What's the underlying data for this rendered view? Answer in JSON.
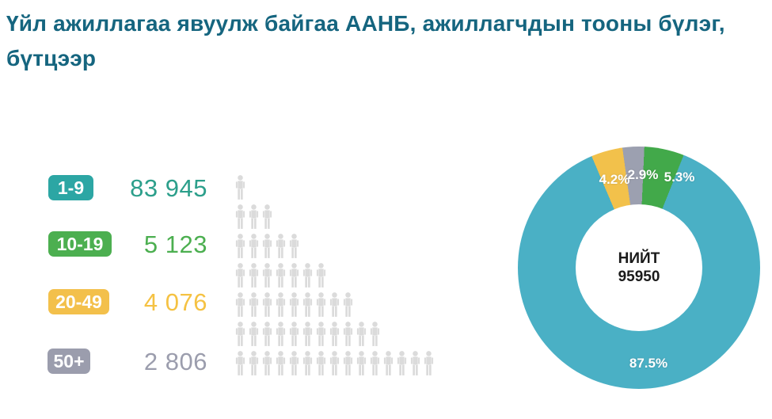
{
  "title": "Үйл ажиллагаа явуулж байгаа ААНБ, ажиллагчдын тооны бүлэг, бүтцээр",
  "colors": {
    "title": "#15657F",
    "badge_1_9": "#2CA6A4",
    "value_1_9": "#2C9F8B",
    "badge_10_19": "#4CAF50",
    "badge_20_49": "#F3C04B",
    "badge_50plus": "#9B9DAD",
    "pictogram_person": "#DBDBDB"
  },
  "legend": {
    "items": [
      {
        "label": "1-9",
        "value": "83 945"
      },
      {
        "label": "10-19",
        "value": "5 123"
      },
      {
        "label": "20-49",
        "value": "4 076"
      },
      {
        "label": "50+",
        "value": "2 806"
      }
    ]
  },
  "pictogram": {
    "icon": "person-icon",
    "color": "#DBDBDB",
    "rows": [
      1,
      3,
      5,
      7,
      9,
      11,
      15
    ]
  },
  "chart_data": {
    "type": "pie",
    "title": "Үйл ажиллагаа явуулж байгаа ААНБ, ажиллагчдын тооны бүлэг, бүтцээр",
    "categories": [
      "1-9",
      "10-19",
      "20-49",
      "50+"
    ],
    "values": [
      83945,
      5123,
      4076,
      2806
    ],
    "center": {
      "label": "НИЙТ",
      "value": "95950"
    },
    "slices": [
      {
        "category": "1-9",
        "value": 83945,
        "percent": 87.5,
        "percent_label": "87.5%",
        "color": "#4AB0C5"
      },
      {
        "category": "10-19",
        "value": 5123,
        "percent": 5.3,
        "percent_label": "5.3%",
        "color": "#42A94A"
      },
      {
        "category": "20-49",
        "value": 4076,
        "percent": 4.2,
        "percent_label": "4.2%",
        "color": "#F2C14B"
      },
      {
        "category": "50+",
        "value": 2806,
        "percent": 2.9,
        "percent_label": "2.9%",
        "color": "#9CA0B0"
      }
    ],
    "donut": {
      "start_angle_deg": 337,
      "draw_order": [
        2,
        3,
        1,
        0
      ],
      "hole_ratio": 0.52
    },
    "legend_position": "left",
    "grid": false
  }
}
